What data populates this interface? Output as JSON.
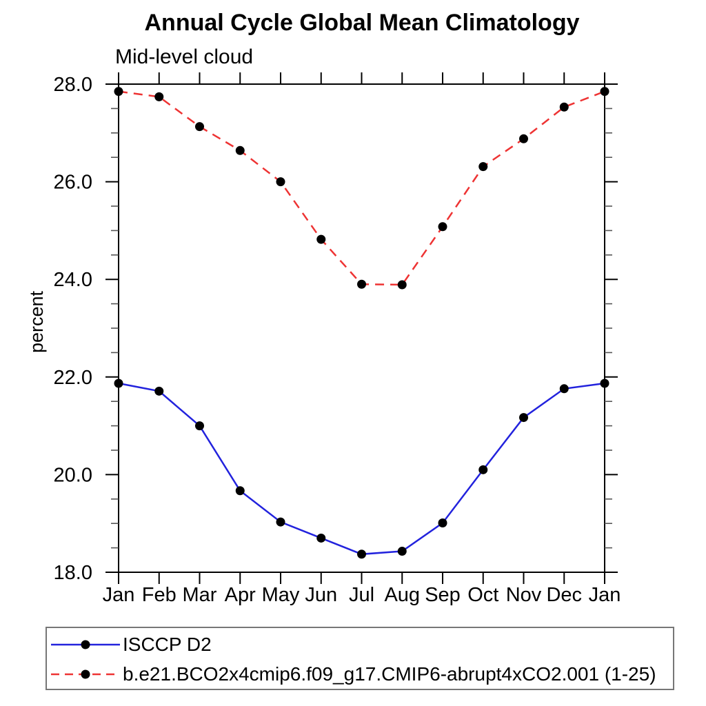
{
  "title": "Annual Cycle Global Mean Climatology",
  "subtitle": "Mid-level cloud",
  "chart_data": {
    "type": "line",
    "title": "Annual Cycle Global Mean Climatology",
    "subtitle": "Mid-level cloud",
    "xlabel": "",
    "ylabel": "percent",
    "x_categories": [
      "Jan",
      "Feb",
      "Mar",
      "Apr",
      "May",
      "Jun",
      "Jul",
      "Aug",
      "Sep",
      "Oct",
      "Nov",
      "Dec",
      "Jan"
    ],
    "ylim": [
      18.0,
      28.0
    ],
    "y_major_ticks": [
      18.0,
      20.0,
      22.0,
      24.0,
      26.0,
      28.0
    ],
    "y_minor_step": 0.5,
    "y_tick_decimals": 1,
    "grid": false,
    "legend_position": "bottom-left",
    "axis_color": "#000000",
    "marker_color": "#000000",
    "series": [
      {
        "name": "ISCCP D2",
        "color": "#2222dd",
        "line_style": "solid",
        "marker": "filled-circle",
        "values": [
          21.87,
          21.71,
          21.0,
          19.67,
          19.03,
          18.7,
          18.37,
          18.43,
          19.01,
          20.1,
          21.17,
          21.76,
          21.87
        ]
      },
      {
        "name": "b.e21.BCO2x4cmip6.f09_g17.CMIP6-abrupt4xCO2.001 (1-25)",
        "color": "#ee3333",
        "line_style": "dashed",
        "marker": "filled-circle",
        "values": [
          27.85,
          27.74,
          27.13,
          26.64,
          26.0,
          24.82,
          23.9,
          23.89,
          25.08,
          26.31,
          26.88,
          27.53,
          27.85
        ]
      }
    ]
  }
}
